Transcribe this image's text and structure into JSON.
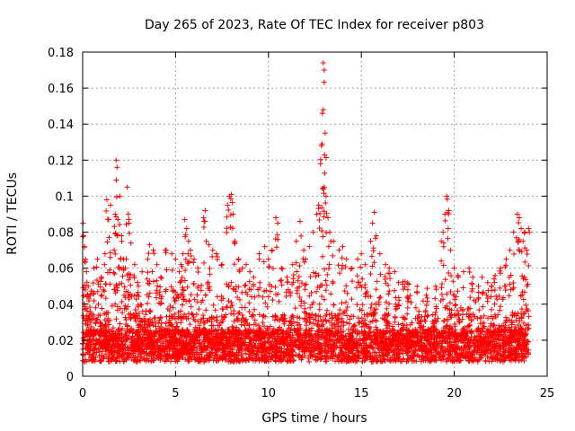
{
  "chart_data": {
    "type": "scatter",
    "title": "Day 265 of 2023, Rate Of TEC Index for receiver p803",
    "xlabel": "GPS time / hours",
    "ylabel": "ROTI / TECUs",
    "xlim": [
      0,
      25
    ],
    "ylim": [
      0,
      0.18
    ],
    "x_ticks": [
      0,
      5,
      10,
      15,
      20,
      25
    ],
    "x_tick_labels": [
      "0",
      "5",
      "10",
      "15",
      "20",
      "25"
    ],
    "y_ticks": [
      0,
      0.02,
      0.04,
      0.06,
      0.08,
      0.1,
      0.12,
      0.14,
      0.16,
      0.18
    ],
    "y_tick_labels": [
      "0",
      "0.02",
      "0.04",
      "0.06",
      "0.08",
      "0.1",
      "0.12",
      "0.14",
      "0.16",
      "0.18"
    ],
    "grid": true,
    "marker": "+",
    "marker_color": "#ff0000",
    "series": [
      {
        "name": "ROTI",
        "points": [
          [
            0.02,
            0.085
          ],
          [
            0.05,
            0.078
          ],
          [
            0.1,
            0.072
          ],
          [
            0.15,
            0.065
          ],
          [
            0.2,
            0.058
          ],
          [
            0.3,
            0.05
          ],
          [
            0.4,
            0.045
          ],
          [
            0.6,
            0.06
          ],
          [
            0.8,
            0.065
          ],
          [
            1.0,
            0.055
          ],
          [
            1.2,
            0.068
          ],
          [
            1.3,
            0.098
          ],
          [
            1.4,
            0.087
          ],
          [
            1.5,
            0.095
          ],
          [
            1.7,
            0.07
          ],
          [
            1.75,
            0.09
          ],
          [
            1.8,
            0.12
          ],
          [
            1.85,
            0.116
          ],
          [
            1.9,
            0.087
          ],
          [
            2.0,
            0.1
          ],
          [
            2.1,
            0.078
          ],
          [
            2.2,
            0.065
          ],
          [
            2.3,
            0.06
          ],
          [
            2.4,
            0.105
          ],
          [
            2.45,
            0.09
          ],
          [
            2.5,
            0.085
          ],
          [
            2.6,
            0.074
          ],
          [
            2.8,
            0.062
          ],
          [
            3.0,
            0.05
          ],
          [
            3.2,
            0.058
          ],
          [
            3.5,
            0.065
          ],
          [
            3.6,
            0.073
          ],
          [
            3.8,
            0.07
          ],
          [
            4.0,
            0.062
          ],
          [
            4.2,
            0.055
          ],
          [
            4.5,
            0.07
          ],
          [
            4.8,
            0.068
          ],
          [
            5.0,
            0.065
          ],
          [
            5.2,
            0.058
          ],
          [
            5.3,
            0.062
          ],
          [
            5.4,
            0.068
          ],
          [
            5.5,
            0.087
          ],
          [
            5.6,
            0.082
          ],
          [
            5.7,
            0.075
          ],
          [
            5.8,
            0.07
          ],
          [
            6.0,
            0.065
          ],
          [
            6.2,
            0.06
          ],
          [
            6.5,
            0.088
          ],
          [
            6.6,
            0.092
          ],
          [
            6.8,
            0.073
          ],
          [
            7.0,
            0.07
          ],
          [
            7.2,
            0.068
          ],
          [
            7.5,
            0.062
          ],
          [
            7.8,
            0.095
          ],
          [
            7.9,
            0.1
          ],
          [
            8.0,
            0.101
          ],
          [
            8.1,
            0.09
          ],
          [
            8.2,
            0.075
          ],
          [
            8.4,
            0.065
          ],
          [
            8.6,
            0.06
          ],
          [
            8.8,
            0.062
          ],
          [
            9.0,
            0.058
          ],
          [
            9.2,
            0.055
          ],
          [
            9.5,
            0.068
          ],
          [
            9.8,
            0.072
          ],
          [
            10.0,
            0.065
          ],
          [
            10.2,
            0.07
          ],
          [
            10.4,
            0.088
          ],
          [
            10.5,
            0.085
          ],
          [
            10.7,
            0.06
          ],
          [
            11.0,
            0.055
          ],
          [
            11.3,
            0.062
          ],
          [
            11.5,
            0.075
          ],
          [
            11.7,
            0.086
          ],
          [
            11.9,
            0.07
          ],
          [
            12.0,
            0.065
          ],
          [
            12.2,
            0.072
          ],
          [
            12.4,
            0.08
          ],
          [
            12.6,
            0.09
          ],
          [
            12.7,
            0.095
          ],
          [
            12.8,
            0.118
          ],
          [
            12.85,
            0.128
          ],
          [
            12.9,
            0.146
          ],
          [
            12.95,
            0.174
          ],
          [
            13.0,
            0.17
          ],
          [
            13.05,
            0.135
          ],
          [
            13.1,
            0.1
          ],
          [
            13.2,
            0.088
          ],
          [
            13.3,
            0.08
          ],
          [
            13.5,
            0.075
          ],
          [
            13.8,
            0.07
          ],
          [
            14.0,
            0.072
          ],
          [
            14.2,
            0.065
          ],
          [
            14.5,
            0.06
          ],
          [
            14.8,
            0.065
          ],
          [
            15.0,
            0.068
          ],
          [
            15.2,
            0.062
          ],
          [
            15.5,
            0.075
          ],
          [
            15.6,
            0.085
          ],
          [
            15.7,
            0.091
          ],
          [
            15.8,
            0.078
          ],
          [
            16.0,
            0.068
          ],
          [
            16.3,
            0.062
          ],
          [
            16.5,
            0.06
          ],
          [
            16.8,
            0.058
          ],
          [
            17.0,
            0.052
          ],
          [
            17.5,
            0.048
          ],
          [
            18.0,
            0.05
          ],
          [
            18.5,
            0.045
          ],
          [
            19.0,
            0.05
          ],
          [
            19.3,
            0.075
          ],
          [
            19.4,
            0.08
          ],
          [
            19.5,
            0.09
          ],
          [
            19.6,
            0.1
          ],
          [
            19.7,
            0.092
          ],
          [
            19.8,
            0.07
          ],
          [
            20.0,
            0.06
          ],
          [
            20.2,
            0.056
          ],
          [
            20.5,
            0.058
          ],
          [
            20.8,
            0.06
          ],
          [
            21.0,
            0.055
          ],
          [
            21.3,
            0.05
          ],
          [
            21.5,
            0.055
          ],
          [
            21.8,
            0.052
          ],
          [
            22.0,
            0.05
          ],
          [
            22.2,
            0.056
          ],
          [
            22.5,
            0.06
          ],
          [
            22.8,
            0.065
          ],
          [
            23.0,
            0.07
          ],
          [
            23.2,
            0.08
          ],
          [
            23.4,
            0.09
          ],
          [
            23.5,
            0.088
          ],
          [
            23.6,
            0.082
          ],
          [
            23.7,
            0.075
          ],
          [
            23.8,
            0.08
          ],
          [
            23.9,
            0.07
          ],
          [
            24.0,
            0.082
          ]
        ]
      }
    ],
    "dense_band": {
      "x_range": [
        0,
        24
      ],
      "y_range": [
        0.005,
        0.05
      ],
      "note": "dense mass of + markers spanning the full day"
    }
  }
}
